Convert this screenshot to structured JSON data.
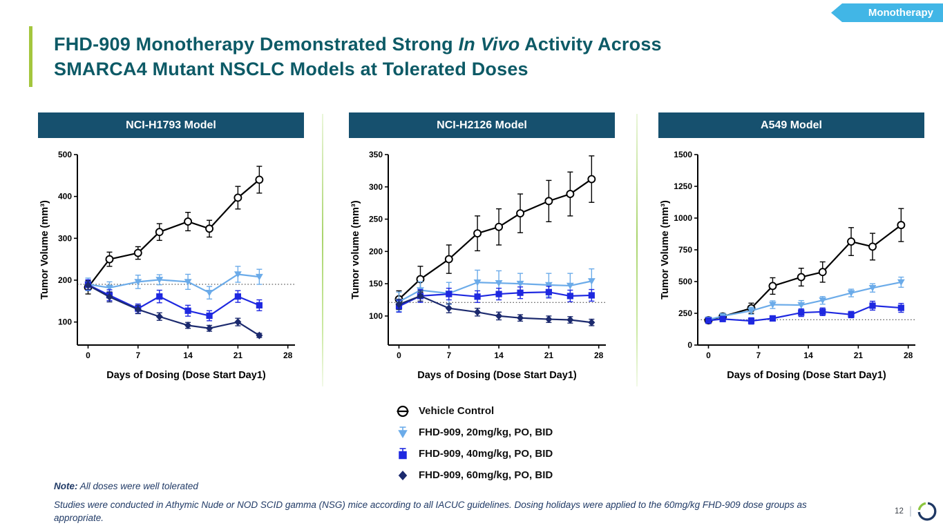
{
  "tag": {
    "label": "Monotherapy",
    "bg_color": "#41b6e6"
  },
  "title": {
    "part1": "FHD-909 Monotherapy Demonstrated Strong ",
    "part2_italic": "In Vivo",
    "part3": " Activity Across",
    "line2": "SMARCA4 Mutant NSCLC Models at Tolerated Doses",
    "color": "#0d5a66"
  },
  "colors": {
    "panel_header_bg": "#16506e",
    "accent_green": "#a4c63e",
    "vehicle": "#000000",
    "dose20": "#6babe9",
    "dose40": "#1e28e0",
    "dose60": "#1c2a6e"
  },
  "chart_data": [
    {
      "type": "line",
      "title": "NCI-H1793 Model",
      "xlabel": "Days of Dosing (Dose Start Day1)",
      "ylabel": "Tumor Volume (mm³)",
      "xlim": [
        -1.5,
        29
      ],
      "ylim": [
        45,
        500
      ],
      "xticks": [
        0,
        7,
        14,
        21,
        28
      ],
      "yticks": [
        100,
        200,
        300,
        400,
        500
      ],
      "baseline": 190,
      "x": [
        0,
        3,
        7,
        10,
        14,
        17,
        21,
        24
      ],
      "series": [
        {
          "name": "Vehicle Control",
          "marker": "circle-open",
          "color": "#000000",
          "values": [
            183,
            250,
            265,
            315,
            340,
            323,
            397,
            440
          ],
          "errors": [
            16,
            17,
            15,
            20,
            22,
            20,
            27,
            32
          ]
        },
        {
          "name": "FHD-909, 20mg/kg, PO, BID",
          "marker": "triangle-down",
          "color": "#6babe9",
          "values": [
            190,
            182,
            196,
            201,
            196,
            170,
            214,
            208
          ],
          "errors": [
            15,
            14,
            16,
            12,
            18,
            15,
            19,
            18
          ]
        },
        {
          "name": "FHD-909, 40mg/kg, PO, BID",
          "marker": "square",
          "color": "#1e28e0",
          "values": [
            189,
            164,
            132,
            161,
            127,
            115,
            161,
            140
          ],
          "errors": [
            12,
            13,
            11,
            15,
            13,
            12,
            14,
            13
          ]
        },
        {
          "name": "FHD-909, 60mg/kg, PO, BID",
          "marker": "diamond",
          "color": "#1c2a6e",
          "values": [
            188,
            160,
            130,
            113,
            92,
            85,
            100,
            68
          ],
          "errors": [
            10,
            12,
            10,
            9,
            7,
            7,
            9,
            5
          ]
        }
      ]
    },
    {
      "type": "line",
      "title": "NCI-H2126 Model",
      "xlabel": "Days of Dosing (Dose Start Day1)",
      "ylabel": "Tumor volume (mm³)",
      "xlim": [
        -1.5,
        29
      ],
      "ylim": [
        55,
        350
      ],
      "xticks": [
        0,
        7,
        14,
        21,
        28
      ],
      "yticks": [
        100,
        150,
        200,
        250,
        300,
        350
      ],
      "baseline": 121,
      "x": [
        0,
        3,
        7,
        11,
        14,
        17,
        21,
        24,
        27
      ],
      "series": [
        {
          "name": "Vehicle Control",
          "marker": "circle-open",
          "color": "#000000",
          "values": [
            126,
            157,
            188,
            228,
            238,
            259,
            278,
            289,
            312
          ],
          "errors": [
            13,
            20,
            22,
            27,
            28,
            30,
            32,
            34,
            36
          ]
        },
        {
          "name": "FHD-909, 20mg/kg, PO, BID",
          "marker": "triangle-down",
          "color": "#6babe9",
          "values": [
            122,
            140,
            135,
            152,
            151,
            150,
            148,
            147,
            154
          ],
          "errors": [
            15,
            13,
            17,
            19,
            19,
            16,
            18,
            19,
            19
          ]
        },
        {
          "name": "FHD-909, 40mg/kg, PO, BID",
          "marker": "square",
          "color": "#1e28e0",
          "values": [
            115,
            131,
            134,
            130,
            134,
            136,
            137,
            131,
            132
          ],
          "errors": [
            9,
            10,
            9,
            9,
            9,
            9,
            9,
            9,
            9
          ]
        },
        {
          "name": "FHD-909, 60mg/kg, PO, BID",
          "marker": "diamond",
          "color": "#1c2a6e",
          "values": [
            118,
            131,
            112,
            106,
            100,
            97,
            95,
            94,
            90
          ],
          "errors": [
            8,
            8,
            7,
            6,
            6,
            5,
            5,
            5,
            5
          ]
        }
      ]
    },
    {
      "type": "line",
      "title": "A549 Model",
      "xlabel": "Days of Dosing (Dose Start Day1)",
      "ylabel": "Tumor Volume (mm³)",
      "xlim": [
        -1.5,
        29
      ],
      "ylim": [
        0,
        1500
      ],
      "xticks": [
        0,
        7,
        14,
        21,
        28
      ],
      "yticks": [
        0,
        250,
        500,
        750,
        1000,
        1250,
        1500
      ],
      "baseline": 200,
      "x": [
        0,
        2,
        6,
        9,
        13,
        16,
        20,
        23,
        27
      ],
      "series": [
        {
          "name": "Vehicle Control",
          "marker": "circle-open",
          "color": "#000000",
          "values": [
            195,
            225,
            290,
            465,
            535,
            575,
            815,
            775,
            945
          ],
          "errors": [
            25,
            25,
            40,
            65,
            70,
            80,
            110,
            105,
            130
          ]
        },
        {
          "name": "FHD-909, 20mg/kg, PO, BID",
          "marker": "triangle-down",
          "color": "#6babe9",
          "values": [
            200,
            228,
            270,
            318,
            315,
            352,
            410,
            450,
            495
          ],
          "errors": [
            20,
            20,
            28,
            30,
            35,
            30,
            30,
            33,
            40
          ]
        },
        {
          "name": "FHD-909, 40mg/kg, PO, BID",
          "marker": "square",
          "color": "#1e28e0",
          "values": [
            193,
            205,
            190,
            210,
            255,
            262,
            240,
            310,
            293
          ],
          "errors": [
            22,
            20,
            25,
            20,
            30,
            30,
            25,
            35,
            35
          ]
        }
      ]
    }
  ],
  "legend": {
    "items": [
      {
        "label": "Vehicle Control",
        "marker": "circle-open-line",
        "color": "#000000"
      },
      {
        "label": "FHD-909, 20mg/kg, PO, BID",
        "marker": "triangle-down",
        "color": "#6babe9"
      },
      {
        "label": "FHD-909, 40mg/kg, PO, BID",
        "marker": "square",
        "color": "#1e28e0"
      },
      {
        "label": "FHD-909, 60mg/kg, PO, BID",
        "marker": "diamond",
        "color": "#1c2a6e"
      }
    ]
  },
  "notes": {
    "note_label": "Note:",
    "note_text": " All doses were well tolerated",
    "footnote": "Studies were conducted in Athymic Nude or NOD SCID gamma (NSG) mice according to all IACUC guidelines. Dosing holidays were applied to the 60mg/kg FHD-909 dose groups as appropriate."
  },
  "footer": {
    "page_number": "12"
  }
}
